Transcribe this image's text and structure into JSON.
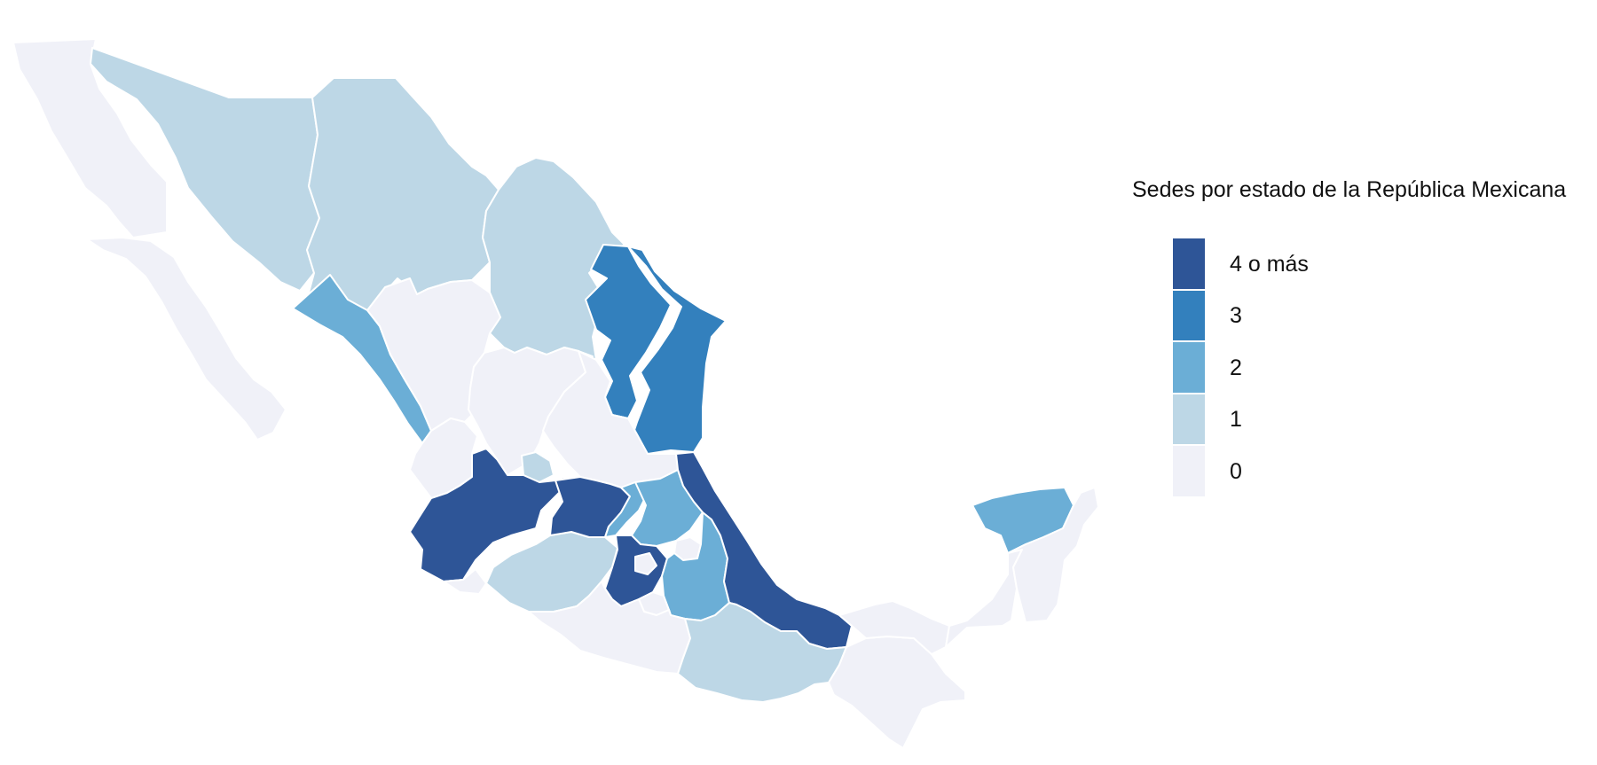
{
  "legend": {
    "title": "Sedes por estado de la República Mexicana",
    "items": [
      {
        "label": "4 o más",
        "color": "#2e5597"
      },
      {
        "label": "3",
        "color": "#3380bd"
      },
      {
        "label": "2",
        "color": "#6baed6"
      },
      {
        "label": "1",
        "color": "#bdd7e6"
      },
      {
        "label": "0",
        "color": "#f0f1f8"
      }
    ]
  },
  "regions": [
    {
      "name": "Baja California",
      "level": "0"
    },
    {
      "name": "Baja California Sur",
      "level": "0"
    },
    {
      "name": "Sonora",
      "level": "1"
    },
    {
      "name": "Chihuahua",
      "level": "1"
    },
    {
      "name": "Coahuila",
      "level": "1"
    },
    {
      "name": "Nuevo León",
      "level": "3"
    },
    {
      "name": "Tamaulipas",
      "level": "3"
    },
    {
      "name": "Sinaloa",
      "level": "2"
    },
    {
      "name": "Durango",
      "level": "0"
    },
    {
      "name": "Zacatecas",
      "level": "0"
    },
    {
      "name": "San Luis Potosí",
      "level": "0"
    },
    {
      "name": "Nayarit",
      "level": "0"
    },
    {
      "name": "Aguascalientes",
      "level": "1"
    },
    {
      "name": "Jalisco",
      "level": "4 o más"
    },
    {
      "name": "Colima",
      "level": "0"
    },
    {
      "name": "Michoacán",
      "level": "1"
    },
    {
      "name": "Guanajuato",
      "level": "4 o más"
    },
    {
      "name": "Querétaro",
      "level": "2"
    },
    {
      "name": "Hidalgo",
      "level": "2"
    },
    {
      "name": "Estado de México",
      "level": "4 o más"
    },
    {
      "name": "Ciudad de México",
      "level": "0"
    },
    {
      "name": "Morelos",
      "level": "0"
    },
    {
      "name": "Tlaxcala",
      "level": "0"
    },
    {
      "name": "Puebla",
      "level": "2"
    },
    {
      "name": "Veracruz",
      "level": "4 o más"
    },
    {
      "name": "Guerrero",
      "level": "0"
    },
    {
      "name": "Oaxaca",
      "level": "1"
    },
    {
      "name": "Chiapas",
      "level": "0"
    },
    {
      "name": "Tabasco",
      "level": "0"
    },
    {
      "name": "Campeche",
      "level": "0"
    },
    {
      "name": "Yucatán",
      "level": "2"
    },
    {
      "name": "Quintana Roo",
      "level": "0"
    }
  ]
}
